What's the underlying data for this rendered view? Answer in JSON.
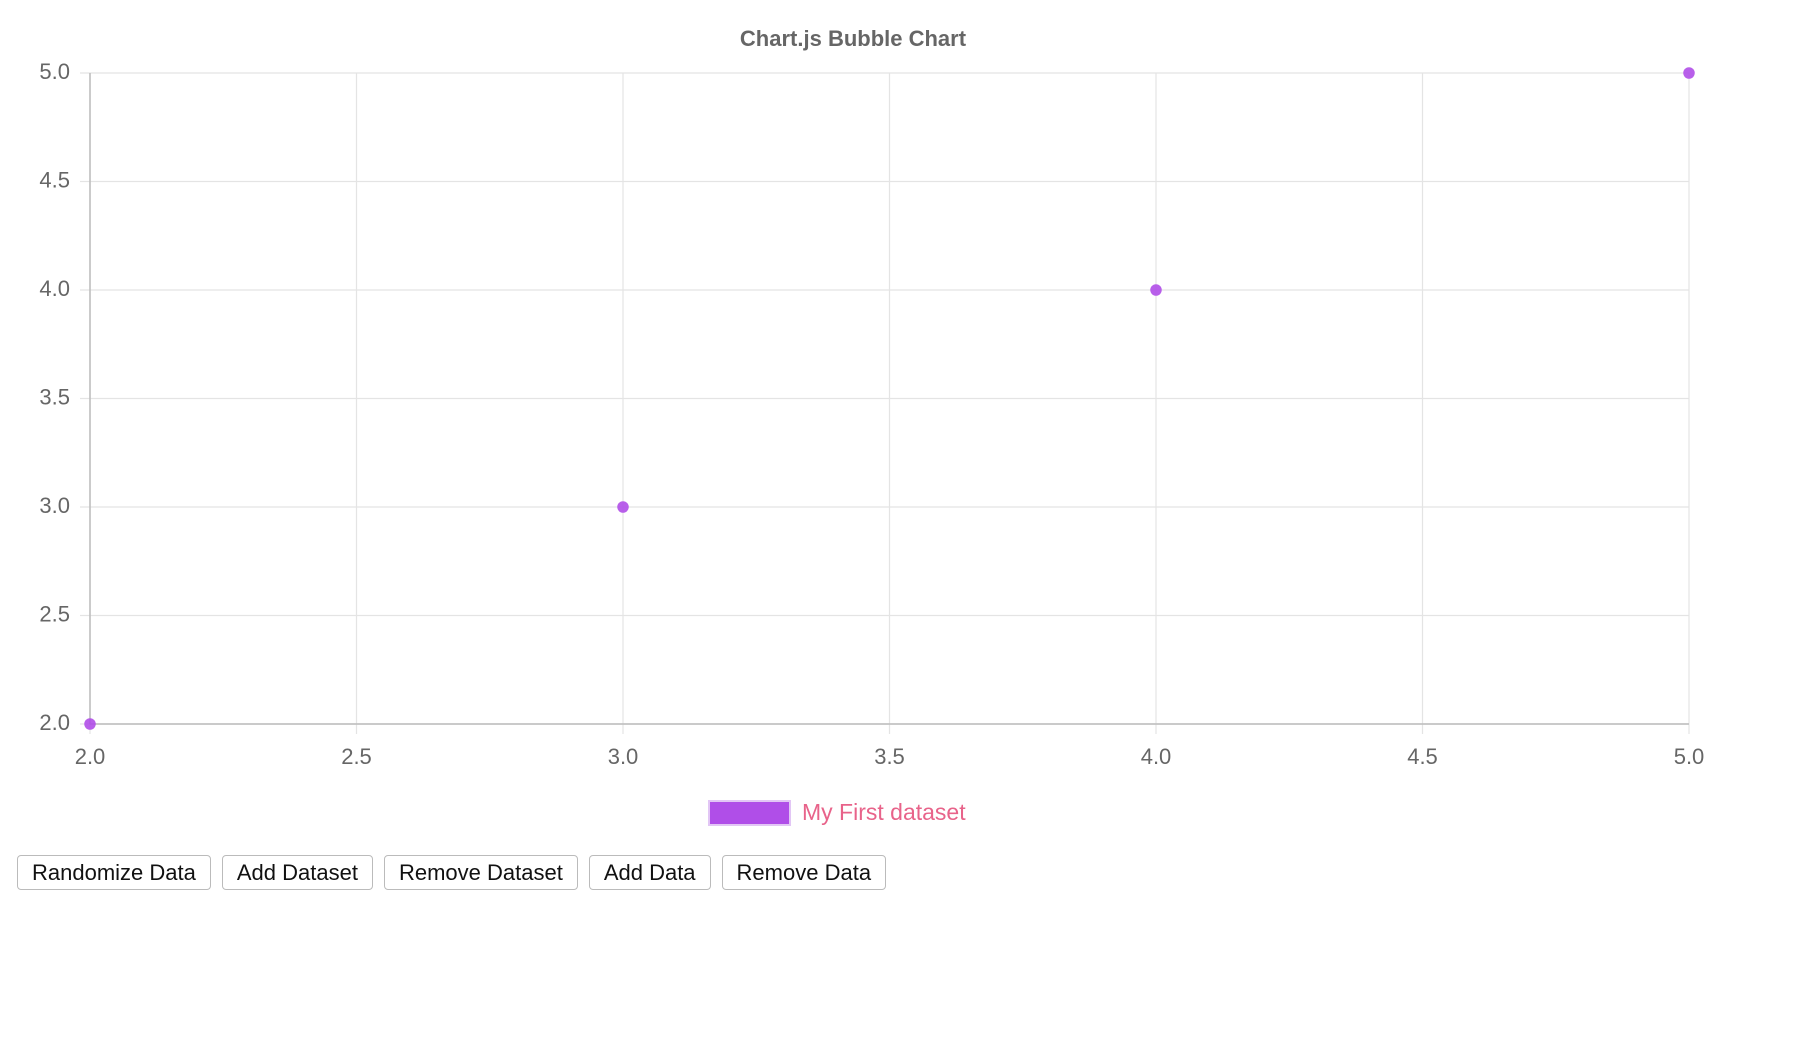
{
  "chart_data": {
    "type": "bubble",
    "title": "Chart.js Bubble Chart",
    "x": [
      2,
      3,
      4,
      5
    ],
    "series": [
      {
        "name": "My First dataset",
        "color": "#b04ee8",
        "values": [
          2,
          3,
          4,
          5
        ],
        "sizes": [
          5,
          5,
          5,
          5
        ]
      }
    ],
    "xlim": [
      2,
      5
    ],
    "ylim": [
      2,
      5
    ],
    "xticks": [
      {
        "value": 2,
        "label": "2.0"
      },
      {
        "value": 2.5,
        "label": "2.5"
      },
      {
        "value": 3,
        "label": "3.0"
      },
      {
        "value": 3.5,
        "label": "3.5"
      },
      {
        "value": 4,
        "label": "4.0"
      },
      {
        "value": 4.5,
        "label": "4.5"
      },
      {
        "value": 5,
        "label": "5.0"
      }
    ],
    "yticks": [
      {
        "value": 2,
        "label": "2.0"
      },
      {
        "value": 2.5,
        "label": "2.5"
      },
      {
        "value": 3,
        "label": "3.0"
      },
      {
        "value": 3.5,
        "label": "3.5"
      },
      {
        "value": 4,
        "label": "4.0"
      },
      {
        "value": 4.5,
        "label": "4.5"
      },
      {
        "value": 5,
        "label": "5.0"
      }
    ],
    "grid": true,
    "legend": "bottom"
  },
  "buttons": [
    "Randomize Data",
    "Add Dataset",
    "Remove Dataset",
    "Add Data",
    "Remove Data"
  ]
}
